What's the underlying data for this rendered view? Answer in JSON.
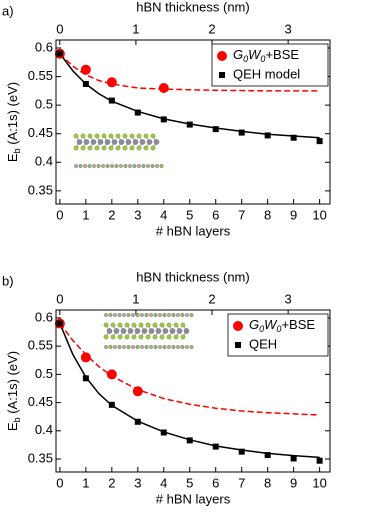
{
  "chart_data": [
    {
      "type": "scatter",
      "panel_label": "a)",
      "xlabel": "# hBN layers",
      "x2label": "hBN thickness (nm)",
      "ylabel": "Eb (A:1s) (eV)",
      "xlim": [
        -0.15,
        10.4
      ],
      "xticks": [
        0,
        1,
        2,
        3,
        4,
        5,
        6,
        7,
        8,
        9,
        10
      ],
      "x2lim": [
        -0.05,
        3.55
      ],
      "x2ticks": [
        0,
        1,
        2,
        3
      ],
      "ylim": [
        0.327,
        0.614
      ],
      "yticks": [
        0.35,
        0.4,
        0.45,
        0.5,
        0.55,
        0.6
      ],
      "legend": "upper right",
      "series": [
        {
          "name": "G0W0+BSE",
          "color": "#ff0000",
          "marker": "circle",
          "x": [
            0,
            1,
            2,
            4
          ],
          "values": [
            0.59,
            0.562,
            0.54,
            0.53
          ]
        },
        {
          "name": "QEH model",
          "color": "#000000",
          "marker": "square",
          "x": [
            0,
            1,
            2,
            3,
            4,
            5,
            6,
            7,
            8,
            9,
            10
          ],
          "values": [
            0.59,
            0.537,
            0.508,
            0.487,
            0.475,
            0.466,
            0.458,
            0.452,
            0.447,
            0.443,
            0.437
          ]
        }
      ],
      "fit_curves": [
        {
          "color": "#ff0000",
          "style": "dashed",
          "x": [
            0,
            0.5,
            1,
            1.5,
            2,
            3,
            4,
            5,
            6,
            8,
            10
          ],
          "values": [
            0.59,
            0.568,
            0.553,
            0.543,
            0.537,
            0.53,
            0.528,
            0.527,
            0.526,
            0.525,
            0.525
          ]
        },
        {
          "color": "#000000",
          "style": "solid",
          "x": [
            0,
            0.5,
            1,
            1.5,
            2,
            3,
            4,
            5,
            6,
            7,
            8,
            9,
            10
          ],
          "values": [
            0.59,
            0.56,
            0.537,
            0.52,
            0.507,
            0.489,
            0.476,
            0.467,
            0.46,
            0.454,
            0.449,
            0.446,
            0.443
          ]
        }
      ]
    },
    {
      "type": "scatter",
      "panel_label": "b)",
      "xlabel": "# hBN layers",
      "x2label": "hBN thickness (nm)",
      "ylabel": "Eb (A:1s) (eV)",
      "xlim": [
        -0.15,
        10.4
      ],
      "xticks": [
        0,
        1,
        2,
        3,
        4,
        5,
        6,
        7,
        8,
        9,
        10
      ],
      "x2lim": [
        -0.05,
        3.55
      ],
      "x2ticks": [
        0,
        1,
        2,
        3
      ],
      "ylim": [
        0.327,
        0.614
      ],
      "yticks": [
        0.35,
        0.4,
        0.45,
        0.5,
        0.55,
        0.6
      ],
      "legend": "upper right",
      "series": [
        {
          "name": "G0W0+BSE",
          "color": "#ff0000",
          "marker": "circle",
          "x": [
            0,
            1,
            2,
            3
          ],
          "values": [
            0.59,
            0.53,
            0.5,
            0.47
          ]
        },
        {
          "name": "QEH",
          "color": "#000000",
          "marker": "square",
          "x": [
            0,
            1,
            2,
            3,
            4,
            5,
            6,
            7,
            8,
            9,
            10
          ],
          "values": [
            0.59,
            0.493,
            0.446,
            0.416,
            0.397,
            0.383,
            0.372,
            0.363,
            0.357,
            0.351,
            0.347
          ]
        }
      ],
      "fit_curves": [
        {
          "color": "#ff0000",
          "style": "dashed",
          "x": [
            0,
            0.5,
            1,
            1.5,
            2,
            3,
            4,
            5,
            6,
            7,
            8,
            9,
            10
          ],
          "values": [
            0.59,
            0.56,
            0.535,
            0.514,
            0.497,
            0.473,
            0.457,
            0.447,
            0.44,
            0.435,
            0.432,
            0.43,
            0.428
          ]
        },
        {
          "color": "#000000",
          "style": "solid",
          "x": [
            0,
            0.5,
            1,
            1.5,
            2,
            3,
            4,
            5,
            6,
            7,
            8,
            9,
            10
          ],
          "values": [
            0.59,
            0.535,
            0.495,
            0.466,
            0.445,
            0.417,
            0.398,
            0.384,
            0.373,
            0.366,
            0.36,
            0.356,
            0.353
          ]
        }
      ]
    }
  ]
}
